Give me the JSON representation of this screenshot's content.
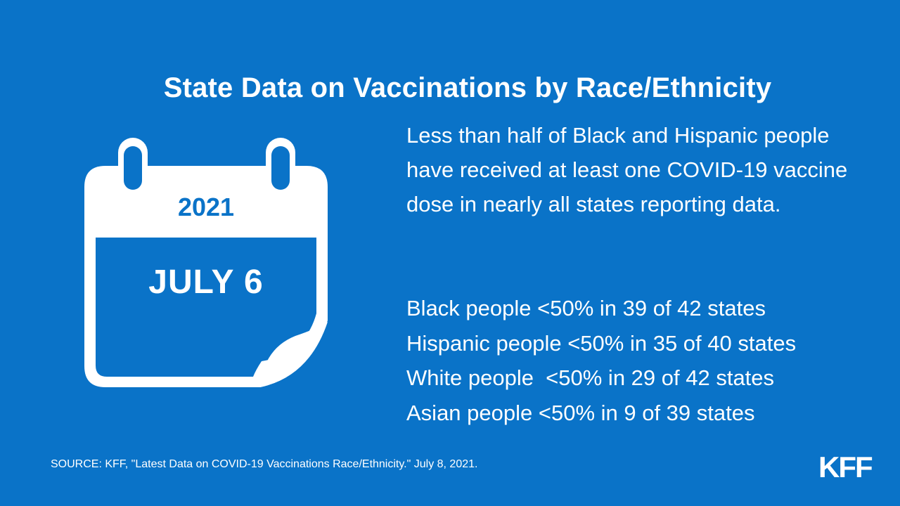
{
  "title": "State Data on Vaccinations by Race/Ethnicity",
  "calendar": {
    "year": "2021",
    "date": "JULY 6"
  },
  "summary": "Less than half of Black and Hispanic people have received at least one COVID-19 vaccine dose in nearly all states reporting data.",
  "stats": [
    "Black people <50% in 39 of 42 states",
    "Hispanic people <50% in 35 of 40 states",
    "White people  <50% in 29 of 42 states",
    "Asian people <50% in 9 of 39 states"
  ],
  "source": "SOURCE: KFF, \"Latest Data on COVID-19 Vaccinations Race/Ethnicity.\" July 8, 2021.",
  "logo": "KFF",
  "colors": {
    "background": "#0a73c8",
    "foreground": "#ffffff"
  }
}
